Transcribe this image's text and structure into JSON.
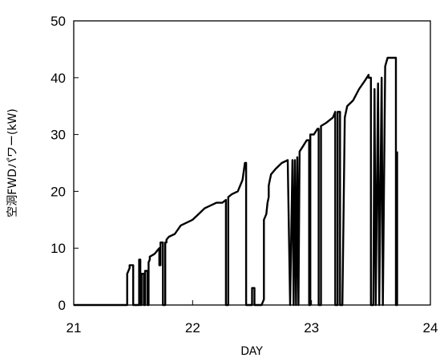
{
  "chart_data": {
    "type": "line",
    "title": "",
    "xlabel": "DAY",
    "ylabel": "空洞FWDパワー(kW)",
    "xlim": [
      21,
      24
    ],
    "ylim": [
      0,
      50
    ],
    "x_ticks": [
      21,
      22,
      23,
      24
    ],
    "y_ticks": [
      0,
      10,
      20,
      30,
      40,
      50
    ],
    "x_tick_labels": [
      "21",
      "22",
      "23",
      "24"
    ],
    "y_tick_labels": [
      "0",
      "10",
      "20",
      "30",
      "40",
      "50"
    ],
    "grid": false,
    "legend": "none",
    "line_color": "#000000",
    "series": [
      {
        "x": [
          21.0,
          21.45,
          21.45,
          21.47,
          21.47,
          21.5,
          21.5,
          21.55,
          21.55,
          21.56,
          21.56,
          21.57,
          21.57,
          21.59,
          21.59,
          21.6,
          21.6,
          21.62,
          21.62,
          21.63,
          21.63,
          21.64,
          21.64,
          21.68,
          21.7,
          21.72,
          21.72,
          21.73,
          21.73,
          21.75,
          21.75,
          21.77,
          21.77,
          21.78,
          21.78,
          21.8,
          21.85,
          21.9,
          22.0,
          22.05,
          22.1,
          22.15,
          22.2,
          22.25,
          22.28,
          22.28,
          22.3,
          22.3,
          22.33,
          22.38,
          22.42,
          22.44,
          22.45,
          22.45,
          22.5,
          22.5,
          22.52,
          22.52,
          22.58,
          22.58,
          22.6,
          22.6,
          22.62,
          22.63,
          22.64,
          22.64,
          22.65,
          22.66,
          22.7,
          22.75,
          22.8,
          22.82,
          22.82,
          22.84,
          22.84,
          22.85,
          22.85,
          22.86,
          22.86,
          22.87,
          22.87,
          22.88,
          22.88,
          22.89,
          22.89,
          22.9,
          22.9,
          22.93,
          22.96,
          22.98,
          22.98,
          22.99,
          22.99,
          23.02,
          23.05,
          23.06,
          23.06,
          23.08,
          23.08,
          23.12,
          23.15,
          23.18,
          23.2,
          23.2,
          23.22,
          23.22,
          23.24,
          23.24,
          23.26,
          23.28,
          23.3,
          23.35,
          23.4,
          23.45,
          23.48,
          23.48,
          23.5,
          23.5,
          23.52,
          23.53,
          23.53,
          23.54,
          23.54,
          23.56,
          23.56,
          23.57,
          23.57,
          23.59,
          23.59,
          23.6,
          23.6,
          23.62,
          23.62,
          23.64,
          23.65,
          23.68,
          23.7,
          23.71,
          23.71,
          23.72,
          23.72
        ],
        "y": [
          0,
          0,
          5.5,
          6.5,
          7,
          7,
          0,
          0,
          8,
          8,
          0,
          0,
          5.5,
          5.5,
          0,
          0,
          6,
          6,
          0,
          0,
          7.5,
          8,
          8.5,
          9,
          9.5,
          10,
          7,
          7,
          11,
          11,
          0,
          0,
          11,
          11,
          11.5,
          12,
          12.5,
          14,
          15,
          16,
          17,
          17.5,
          18,
          18,
          18.5,
          0,
          0,
          19,
          19.5,
          20,
          22,
          25,
          25,
          0,
          0,
          3,
          3,
          0,
          0,
          0,
          1,
          15,
          16,
          18,
          19,
          21,
          22,
          23,
          24,
          25,
          25.5,
          0,
          0,
          25.5,
          25.5,
          0,
          0,
          25.5,
          25.5,
          0,
          0,
          26,
          26,
          0,
          0,
          27,
          27,
          28,
          29,
          29,
          0,
          0,
          30,
          30,
          31,
          31,
          0,
          0,
          31.5,
          32,
          32.5,
          33,
          34,
          0,
          0,
          34,
          34,
          0,
          0,
          33,
          35,
          36,
          38,
          39.5,
          40.5,
          40,
          40,
          0,
          0,
          38,
          38,
          0,
          0,
          39,
          39,
          0,
          0,
          40,
          40,
          0,
          0,
          42,
          42,
          43.5,
          43.5,
          43.5,
          43.5,
          43.5,
          0,
          0,
          27
        ]
      }
    ]
  }
}
